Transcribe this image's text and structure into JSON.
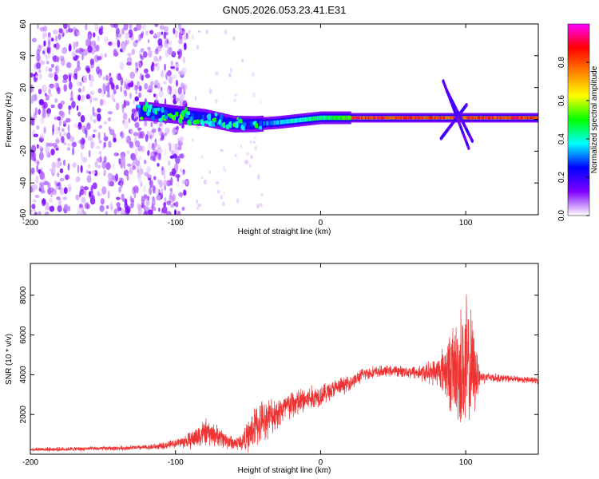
{
  "figure": {
    "title": "GN05.2026.053.23.41.E31"
  },
  "chart_data": [
    {
      "type": "heatmap",
      "xlabel": "Height of straight line (km)",
      "ylabel": "Frequency (Hz)",
      "xlim": [
        -200,
        150
      ],
      "ylim": [
        -60,
        60
      ],
      "xticks": [
        -200,
        -100,
        0,
        100
      ],
      "yticks": [
        -60,
        -40,
        -20,
        0,
        20,
        40,
        60
      ],
      "colorbar": {
        "label": "Normalized spectral amplitude",
        "range": [
          0,
          1
        ],
        "ticks": [
          "0.0",
          "0.2",
          "0.4",
          "0.6",
          "0.8"
        ],
        "colormap": [
          "#ffffff",
          "#8000ff",
          "#0000ff",
          "#00ffff",
          "#00ff00",
          "#ffff00",
          "#ff8000",
          "#ff0000",
          "#ff00ff"
        ]
      },
      "features": {
        "noise_region_x": [
          -200,
          -100
        ],
        "band_center_hz": [
          [
            -120,
            5
          ],
          [
            -100,
            3
          ],
          [
            -80,
            1
          ],
          [
            -60,
            -3
          ],
          [
            -45,
            -3
          ],
          [
            -30,
            -2
          ],
          [
            -10,
            0
          ],
          [
            0,
            1
          ],
          [
            20,
            1
          ],
          [
            50,
            1
          ],
          [
            80,
            1
          ],
          [
            100,
            1
          ],
          [
            150,
            1
          ]
        ],
        "peak_region_x": [
          20,
          130
        ],
        "streak_x": [
          85,
          105
        ]
      }
    },
    {
      "type": "line",
      "xlabel": "Height of straight line (km)",
      "ylabel": "SNR (10 * v/v)",
      "xlim": [
        -200,
        150
      ],
      "ylim": [
        0,
        9600
      ],
      "xticks": [
        -200,
        -100,
        0,
        100
      ],
      "yticks": [
        2000,
        4000,
        6000,
        8000
      ],
      "line_color": "#ee3333",
      "series": [
        {
          "x": [
            -200,
            -180,
            -160,
            -140,
            -120,
            -110,
            -100,
            -90,
            -85,
            -80,
            -75,
            -70,
            -65,
            -60,
            -55,
            -50,
            -45,
            -40,
            -35,
            -30,
            -25,
            -20,
            -15,
            -10,
            -5,
            0,
            5,
            10,
            15,
            20,
            25,
            30,
            40,
            50,
            60,
            70,
            80,
            85,
            90,
            95,
            100,
            105,
            110,
            120,
            130,
            140,
            150
          ],
          "y": [
            250,
            250,
            280,
            300,
            350,
            400,
            550,
            700,
            900,
            1100,
            1000,
            900,
            700,
            550,
            600,
            900,
            1400,
            1700,
            1900,
            2100,
            2300,
            2500,
            2600,
            2750,
            2850,
            3000,
            3150,
            3300,
            3450,
            3600,
            3800,
            4050,
            4150,
            4200,
            4150,
            4100,
            4150,
            4250,
            4200,
            4200,
            4300,
            4200,
            3900,
            3850,
            3800,
            3750,
            3700
          ],
          "spread": [
            120,
            120,
            120,
            130,
            150,
            200,
            250,
            500,
            700,
            800,
            700,
            600,
            500,
            400,
            500,
            900,
            1300,
            1200,
            1100,
            1000,
            900,
            900,
            850,
            800,
            700,
            650,
            600,
            550,
            500,
            450,
            400,
            400,
            350,
            300,
            350,
            500,
            800,
            1500,
            2500,
            3300,
            4500,
            3000,
            400,
            250,
            200,
            200,
            200
          ]
        }
      ]
    }
  ]
}
